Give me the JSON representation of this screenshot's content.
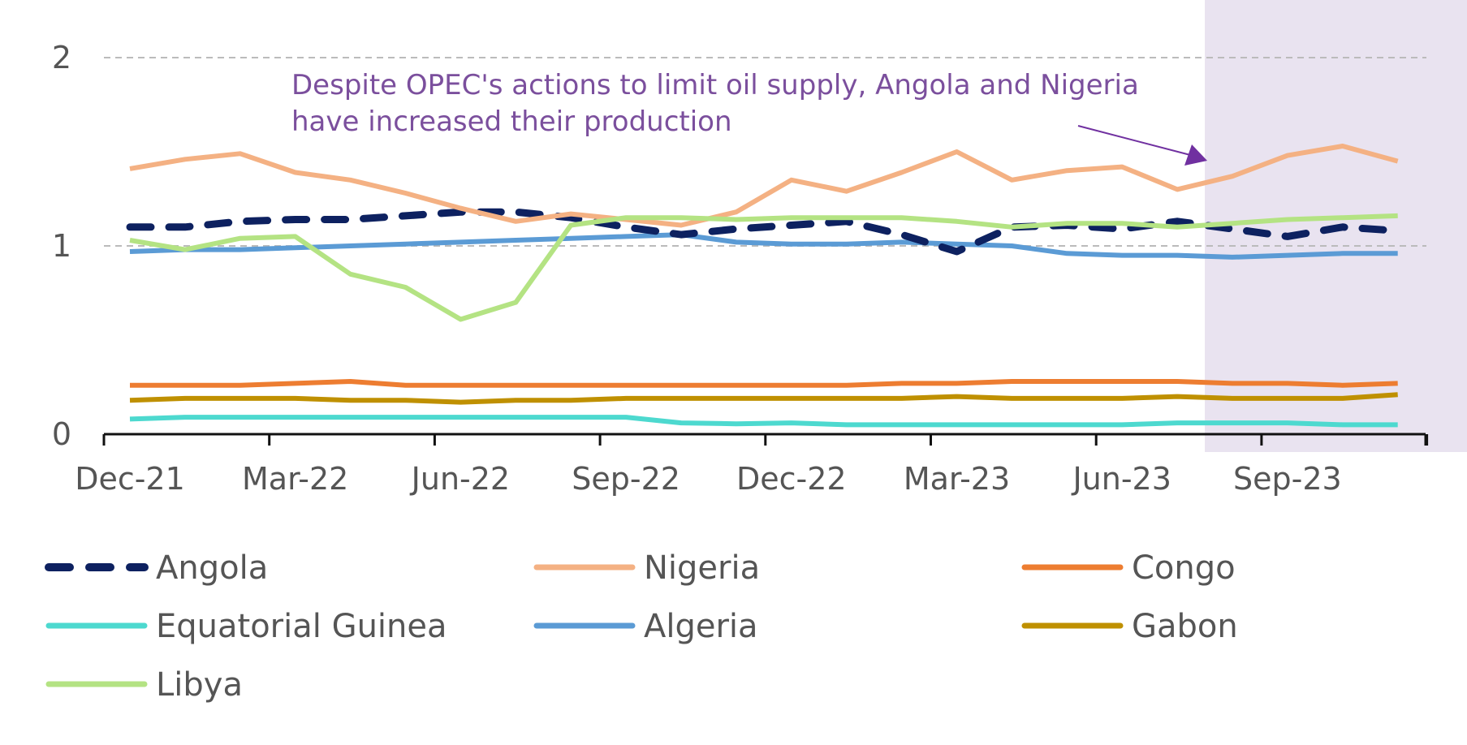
{
  "chart_data": {
    "type": "line",
    "x": [
      "Dec-21",
      "Jan-22",
      "Feb-22",
      "Mar-22",
      "Apr-22",
      "May-22",
      "Jun-22",
      "Jul-22",
      "Aug-22",
      "Sep-22",
      "Oct-22",
      "Nov-22",
      "Dec-22",
      "Jan-23",
      "Feb-23",
      "Mar-23",
      "Apr-23",
      "May-23",
      "Jun-23",
      "Jul-23",
      "Aug-23",
      "Sep-23",
      "Oct-23",
      "Nov-23"
    ],
    "x_tick_labels": [
      "Dec-21",
      "Mar-22",
      "Jun-22",
      "Sep-22",
      "Dec-22",
      "Mar-23",
      "Jun-23",
      "Sep-23"
    ],
    "y_tick_labels": [
      "0",
      "1",
      "2"
    ],
    "ylim": [
      0,
      2
    ],
    "highlight_start": "Aug-23",
    "grid": "dashed at 1 and 2",
    "annotation": {
      "lines": [
        "Despite OPEC's actions to limit oil supply, Angola and Nigeria",
        "have increased their production"
      ],
      "color": "#7b4f9d"
    },
    "series": [
      {
        "name": "Angola",
        "color": "#0d2160",
        "dashed": true,
        "values": [
          1.1,
          1.1,
          1.13,
          1.14,
          1.14,
          1.16,
          1.18,
          1.18,
          1.15,
          1.1,
          1.06,
          1.09,
          1.11,
          1.13,
          1.06,
          0.97,
          1.1,
          1.11,
          1.09,
          1.13,
          1.09,
          1.05,
          1.1,
          1.08
        ]
      },
      {
        "name": "Nigeria",
        "color": "#f4b183",
        "dashed": false,
        "values": [
          1.41,
          1.46,
          1.49,
          1.39,
          1.35,
          1.28,
          1.2,
          1.13,
          1.17,
          1.14,
          1.11,
          1.18,
          1.35,
          1.29,
          1.39,
          1.5,
          1.35,
          1.4,
          1.42,
          1.3,
          1.37,
          1.48,
          1.53,
          1.45
        ]
      },
      {
        "name": "Congo",
        "color": "#ed7d31",
        "dashed": false,
        "values": [
          0.26,
          0.26,
          0.26,
          0.27,
          0.28,
          0.26,
          0.26,
          0.26,
          0.26,
          0.26,
          0.26,
          0.26,
          0.26,
          0.26,
          0.27,
          0.27,
          0.28,
          0.28,
          0.28,
          0.28,
          0.27,
          0.27,
          0.26,
          0.27
        ]
      },
      {
        "name": "Equatorial Guinea",
        "color": "#4dd9cf",
        "dashed": false,
        "values": [
          0.08,
          0.09,
          0.09,
          0.09,
          0.09,
          0.09,
          0.09,
          0.09,
          0.09,
          0.09,
          0.06,
          0.055,
          0.06,
          0.05,
          0.05,
          0.05,
          0.05,
          0.05,
          0.05,
          0.06,
          0.06,
          0.06,
          0.05,
          0.05
        ]
      },
      {
        "name": "Algeria",
        "color": "#5b9bd5",
        "dashed": false,
        "values": [
          0.97,
          0.98,
          0.98,
          0.99,
          1.0,
          1.01,
          1.02,
          1.03,
          1.04,
          1.05,
          1.06,
          1.02,
          1.01,
          1.01,
          1.02,
          1.01,
          1.0,
          0.96,
          0.95,
          0.95,
          0.94,
          0.95,
          0.96,
          0.96
        ]
      },
      {
        "name": "Gabon",
        "color": "#bf9000",
        "dashed": false,
        "values": [
          0.18,
          0.19,
          0.19,
          0.19,
          0.18,
          0.18,
          0.17,
          0.18,
          0.18,
          0.19,
          0.19,
          0.19,
          0.19,
          0.19,
          0.19,
          0.2,
          0.19,
          0.19,
          0.19,
          0.2,
          0.19,
          0.19,
          0.19,
          0.21
        ]
      },
      {
        "name": "Libya",
        "color": "#b4e383",
        "dashed": false,
        "values": [
          1.03,
          0.98,
          1.04,
          1.05,
          0.85,
          0.78,
          0.61,
          0.7,
          1.11,
          1.15,
          1.15,
          1.14,
          1.15,
          1.15,
          1.15,
          1.13,
          1.1,
          1.12,
          1.12,
          1.1,
          1.12,
          1.14,
          1.15,
          1.16
        ]
      }
    ]
  }
}
